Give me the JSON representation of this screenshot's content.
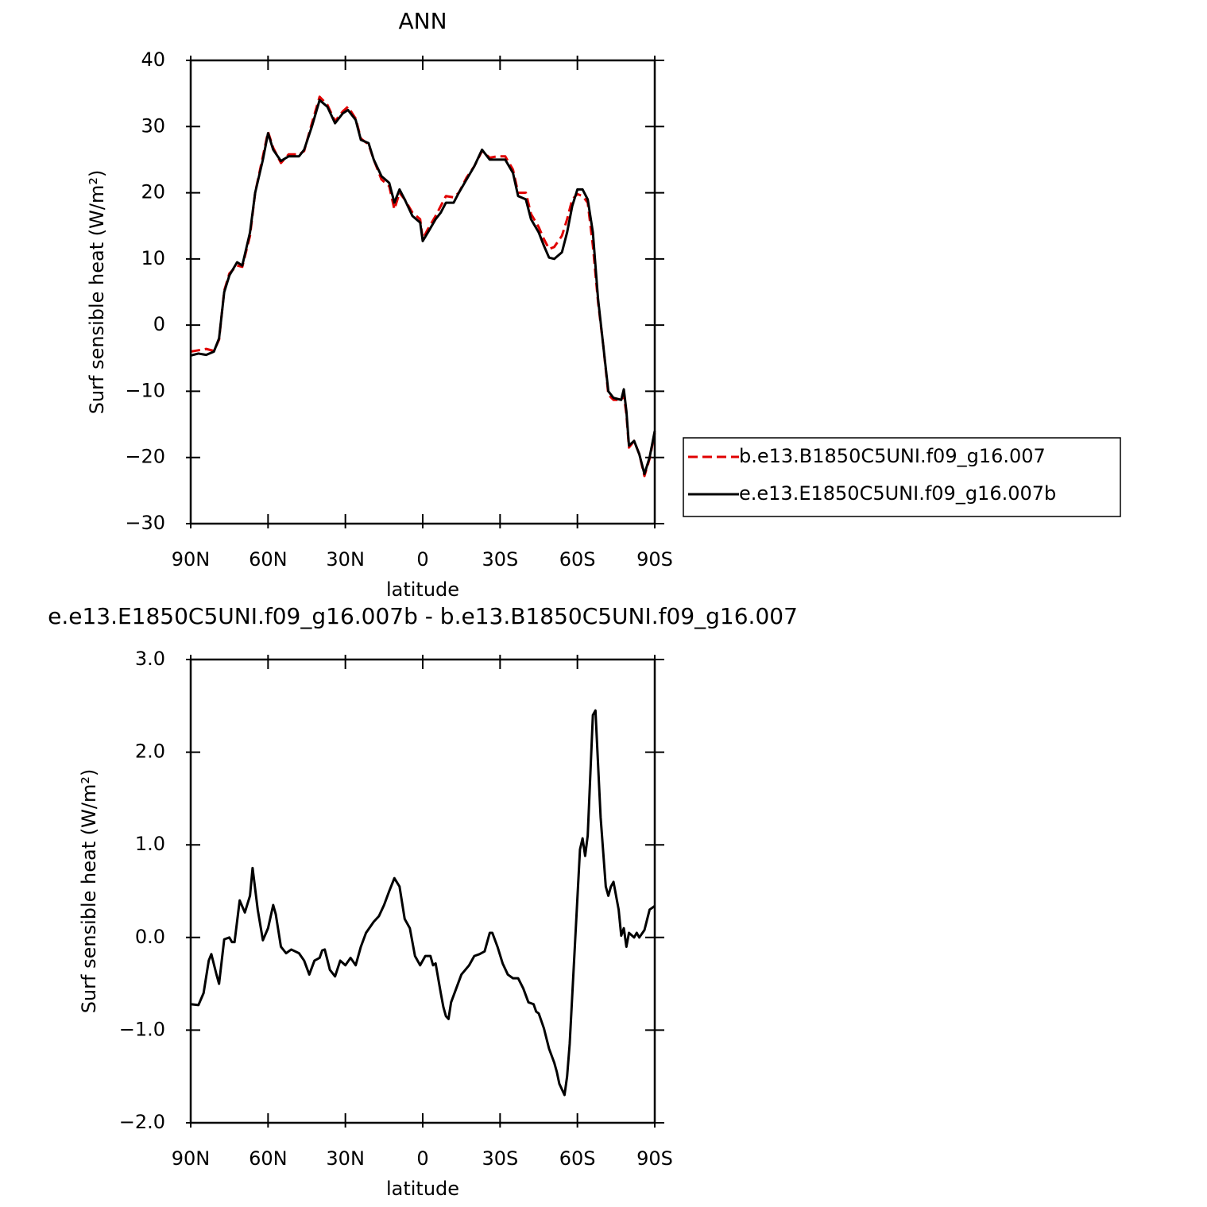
{
  "chart_data": [
    {
      "type": "line",
      "title": "ANN",
      "xlabel": "latitude",
      "ylabel": "Surf sensible heat (W/m²)",
      "x": [
        90,
        87,
        84,
        81,
        79,
        77,
        75,
        72,
        70,
        67,
        65,
        62,
        60,
        58,
        55,
        52,
        48,
        46,
        43,
        40,
        37,
        34,
        31,
        29,
        26,
        24,
        21,
        19,
        16,
        13,
        11,
        9,
        7,
        4,
        1,
        0,
        -2,
        -5,
        -7,
        -9,
        -12,
        -14,
        -17,
        -20,
        -23,
        -26,
        -29,
        -32,
        -35,
        -37,
        -40,
        -42,
        -45,
        -47,
        -49,
        -51,
        -54,
        -56,
        -58,
        -60,
        -62,
        -64,
        -66,
        -68,
        -70,
        -72,
        -74,
        -77,
        -78,
        -79,
        -80,
        -82,
        -84,
        -86,
        -88,
        -90
      ],
      "series": [
        {
          "name": "b.e13.B1850C5UNI.f09_g16.007",
          "color": "#e00000",
          "line_style": "dashed",
          "values": [
            -4.0,
            -3.8,
            -3.6,
            -3.9,
            -2.2,
            5.2,
            7.8,
            9.0,
            8.8,
            13.5,
            20,
            25.5,
            29.2,
            26.8,
            24.5,
            25.8,
            25.8,
            26.3,
            30.5,
            34.5,
            33.3,
            30.8,
            32.3,
            33,
            31.2,
            28.2,
            27.3,
            25,
            22,
            21,
            17.5,
            20,
            19,
            17,
            16,
            13,
            14.5,
            16.5,
            18,
            19.5,
            19.3,
            20,
            22.3,
            24,
            26.3,
            25.3,
            25.5,
            25.5,
            23.5,
            20,
            20,
            16.8,
            14.8,
            13,
            11.5,
            11.8,
            13.5,
            16,
            19,
            19.8,
            19.5,
            18.5,
            12,
            3.5,
            -3,
            -10.5,
            -11.3,
            -11.3,
            -10.5,
            -13.5,
            -18.5,
            -17.5,
            -19.5,
            -22.8,
            -20.2,
            -16.3
          ]
        },
        {
          "name": "e.e13.E1850C5UNI.f09_g16.007b",
          "color": "#000000",
          "line_style": "solid",
          "values": [
            -4.6,
            -4.3,
            -4.5,
            -4.0,
            -2.0,
            5,
            7.5,
            9.5,
            9.0,
            14,
            20,
            25,
            29,
            26.5,
            24.8,
            25.5,
            25.5,
            26.5,
            30,
            34,
            33,
            30.5,
            32,
            32.5,
            31,
            28,
            27.5,
            25,
            22.5,
            21.5,
            18.5,
            20.5,
            19,
            16.5,
            15.5,
            12.7,
            14,
            16,
            17,
            18.5,
            18.5,
            20,
            22,
            24,
            26.5,
            25,
            25,
            25,
            23,
            19.5,
            19,
            16,
            14,
            12,
            10.2,
            10,
            11,
            14,
            18,
            20.5,
            20.5,
            19,
            14,
            4,
            -3,
            -10,
            -11,
            -11.3,
            -9.7,
            -13,
            -18.2,
            -17.5,
            -19.5,
            -22.5,
            -20,
            -16
          ]
        }
      ],
      "xlim": [
        90,
        -90
      ],
      "xticks": [
        {
          "value": 90,
          "label": "90N"
        },
        {
          "value": 60,
          "label": "60N"
        },
        {
          "value": 30,
          "label": "30N"
        },
        0,
        {
          "value": -30,
          "label": "30S"
        },
        {
          "value": -60,
          "label": "60S"
        },
        {
          "value": -90,
          "label": "90S"
        }
      ],
      "ylim": [
        -30,
        40
      ],
      "yticks": [
        {
          "value": -30,
          "label": "−30"
        },
        {
          "value": -20,
          "label": "−20"
        },
        {
          "value": -10,
          "label": "−10"
        },
        0,
        10,
        20,
        30,
        40
      ],
      "legend": "right"
    },
    {
      "type": "line",
      "title": "e.e13.E1850C5UNI.f09_g16.007b - b.e13.B1850C5UNI.f09_g16.007",
      "xlabel": "latitude",
      "ylabel": "Surf sensible heat (W/m²)",
      "x": [
        90,
        87,
        85,
        83,
        82,
        80,
        79,
        77,
        75,
        74,
        73,
        71,
        69,
        67,
        66,
        64,
        62,
        60,
        58,
        57,
        55,
        53,
        51,
        48,
        46,
        44,
        42,
        40,
        39,
        38,
        36,
        34,
        32,
        30,
        28,
        26,
        24,
        22,
        19,
        17,
        15,
        13,
        11,
        9,
        7,
        5,
        3,
        1,
        -1,
        -3,
        -4,
        -5,
        -7,
        -8,
        -9,
        -10,
        -11,
        -13,
        -15,
        -18,
        -20,
        -22,
        -24,
        -26,
        -27,
        -29,
        -31,
        -33,
        -35,
        -37,
        -39,
        -41,
        -43,
        -44,
        -45,
        -47,
        -49,
        -51,
        -52,
        -53,
        -55,
        -56,
        -57,
        -59,
        -61,
        -62,
        -63,
        -64,
        -66,
        -67,
        -69,
        -71,
        -72,
        -73,
        -74,
        -76,
        -77,
        -78,
        -79,
        -80,
        -82,
        -83,
        -84,
        -86,
        -88,
        -90
      ],
      "color": "#000000",
      "line_style": "solid",
      "values": [
        -0.72,
        -0.73,
        -0.6,
        -0.25,
        -0.18,
        -0.4,
        -0.5,
        -0.02,
        0.0,
        -0.05,
        -0.05,
        0.4,
        0.27,
        0.45,
        0.75,
        0.3,
        -0.03,
        0.1,
        0.35,
        0.25,
        -0.1,
        -0.17,
        -0.13,
        -0.17,
        -0.25,
        -0.4,
        -0.25,
        -0.22,
        -0.14,
        -0.13,
        -0.35,
        -0.42,
        -0.25,
        -0.3,
        -0.22,
        -0.3,
        -0.1,
        0.05,
        0.17,
        0.23,
        0.35,
        0.5,
        0.64,
        0.55,
        0.2,
        0.1,
        -0.2,
        -0.3,
        -0.2,
        -0.2,
        -0.3,
        -0.28,
        -0.6,
        -0.75,
        -0.85,
        -0.88,
        -0.7,
        -0.55,
        -0.4,
        -0.3,
        -0.2,
        -0.18,
        -0.15,
        0.05,
        0.05,
        -0.1,
        -0.28,
        -0.4,
        -0.44,
        -0.44,
        -0.55,
        -0.7,
        -0.72,
        -0.8,
        -0.82,
        -0.98,
        -1.2,
        -1.35,
        -1.45,
        -1.58,
        -1.7,
        -1.5,
        -1.15,
        -0.1,
        0.95,
        1.07,
        0.88,
        1.1,
        2.4,
        2.45,
        1.3,
        0.55,
        0.45,
        0.55,
        0.6,
        0.3,
        0.02,
        0.1,
        -0.1,
        0.05,
        0.0,
        0.05,
        0.0,
        0.08,
        0.3,
        0.34
      ],
      "xlim": [
        90,
        -90
      ],
      "xticks": [
        {
          "value": 90,
          "label": "90N"
        },
        {
          "value": 60,
          "label": "60N"
        },
        {
          "value": 30,
          "label": "30N"
        },
        0,
        {
          "value": -30,
          "label": "30S"
        },
        {
          "value": -60,
          "label": "60S"
        },
        {
          "value": -90,
          "label": "90S"
        }
      ],
      "ylim": [
        -2,
        3
      ],
      "yticks": [
        {
          "value": -2,
          "label": "−2.0"
        },
        {
          "value": -1,
          "label": "−1.0"
        },
        {
          "value": 0,
          "label": "0.0"
        },
        {
          "value": 1,
          "label": "1.0"
        },
        {
          "value": 2,
          "label": "2.0"
        },
        {
          "value": 3,
          "label": "3.0"
        }
      ]
    }
  ]
}
